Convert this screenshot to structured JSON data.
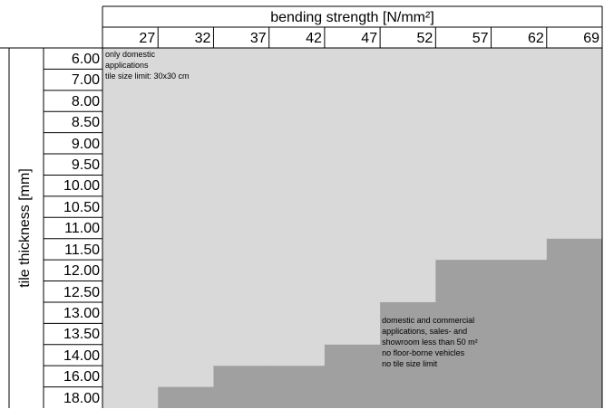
{
  "chart_data": {
    "type": "heatmap",
    "x_title": "bending strength [N/mm²]",
    "y_title": "tile thickness [mm]",
    "columns": [
      "27",
      "32",
      "37",
      "42",
      "47",
      "52",
      "57",
      "62",
      "69"
    ],
    "rows": [
      "6.00",
      "7.00",
      "8.00",
      "8.50",
      "9.00",
      "9.50",
      "10.00",
      "10.50",
      "11.00",
      "11.50",
      "12.00",
      "12.50",
      "13.00",
      "13.50",
      "14.00",
      "16.00",
      "18.00"
    ],
    "zone_boundary_first_row_index": [
      17,
      16,
      15,
      15,
      14,
      12,
      10,
      10,
      9
    ],
    "zones": [
      {
        "id": "domestic",
        "color": "#d9d9d9",
        "lines": [
          "only domestic",
          "applications",
          "tile size limit: 30x30 cm"
        ]
      },
      {
        "id": "commercial",
        "color": "#a0a0a0",
        "lines": [
          "domestic and commercial",
          "applications, sales- and",
          "showroom less than 50 m²",
          "no floor-borne vehicles",
          "no tile size limit"
        ]
      }
    ]
  }
}
